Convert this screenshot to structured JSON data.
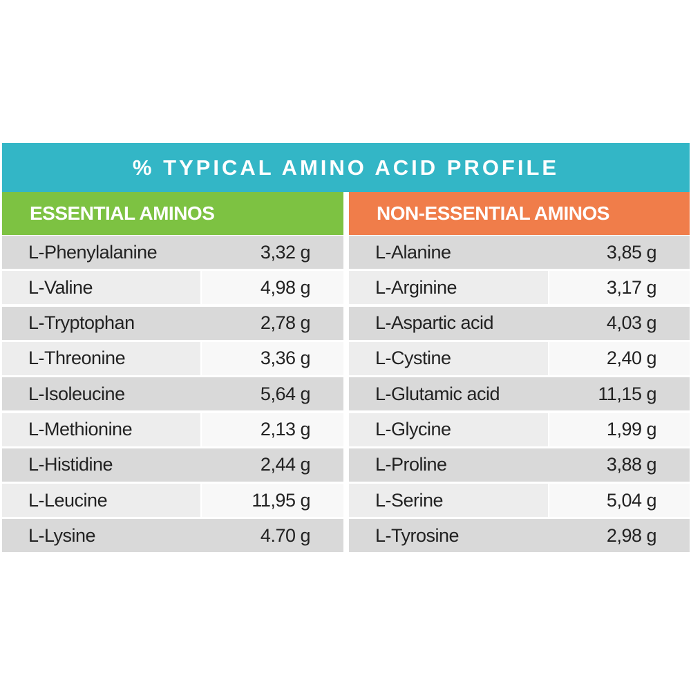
{
  "title": "% TYPICAL AMINO ACID PROFILE",
  "tables": [
    {
      "header": "ESSENTIAL AMINOS",
      "rows": [
        [
          "L-Phenylalanine",
          "3,32 g"
        ],
        [
          "L-Valine",
          "4,98 g"
        ],
        [
          "L-Tryptophan",
          "2,78 g"
        ],
        [
          "L-Threonine",
          "3,36 g"
        ],
        [
          "L-Isoleucine",
          "5,64 g"
        ],
        [
          "L-Methionine",
          "2,13 g"
        ],
        [
          "L-Histidine",
          "2,44 g"
        ],
        [
          "L-Leucine",
          "11,95 g"
        ],
        [
          "L-Lysine",
          "4.70 g"
        ]
      ]
    },
    {
      "header": "NON-ESSENTIAL AMINOS",
      "rows": [
        [
          "L-Alanine",
          "3,85 g"
        ],
        [
          "L-Arginine",
          "3,17 g"
        ],
        [
          "L-Aspartic acid",
          "4,03 g"
        ],
        [
          "L-Cystine",
          "2,40 g"
        ],
        [
          "L-Glutamic acid",
          "11,15 g"
        ],
        [
          "L-Glycine",
          "1,99 g"
        ],
        [
          "L-Proline",
          "3,88 g"
        ],
        [
          "L-Serine",
          "5,04 g"
        ],
        [
          "L-Tyrosine",
          "2,98 g"
        ]
      ]
    }
  ]
}
